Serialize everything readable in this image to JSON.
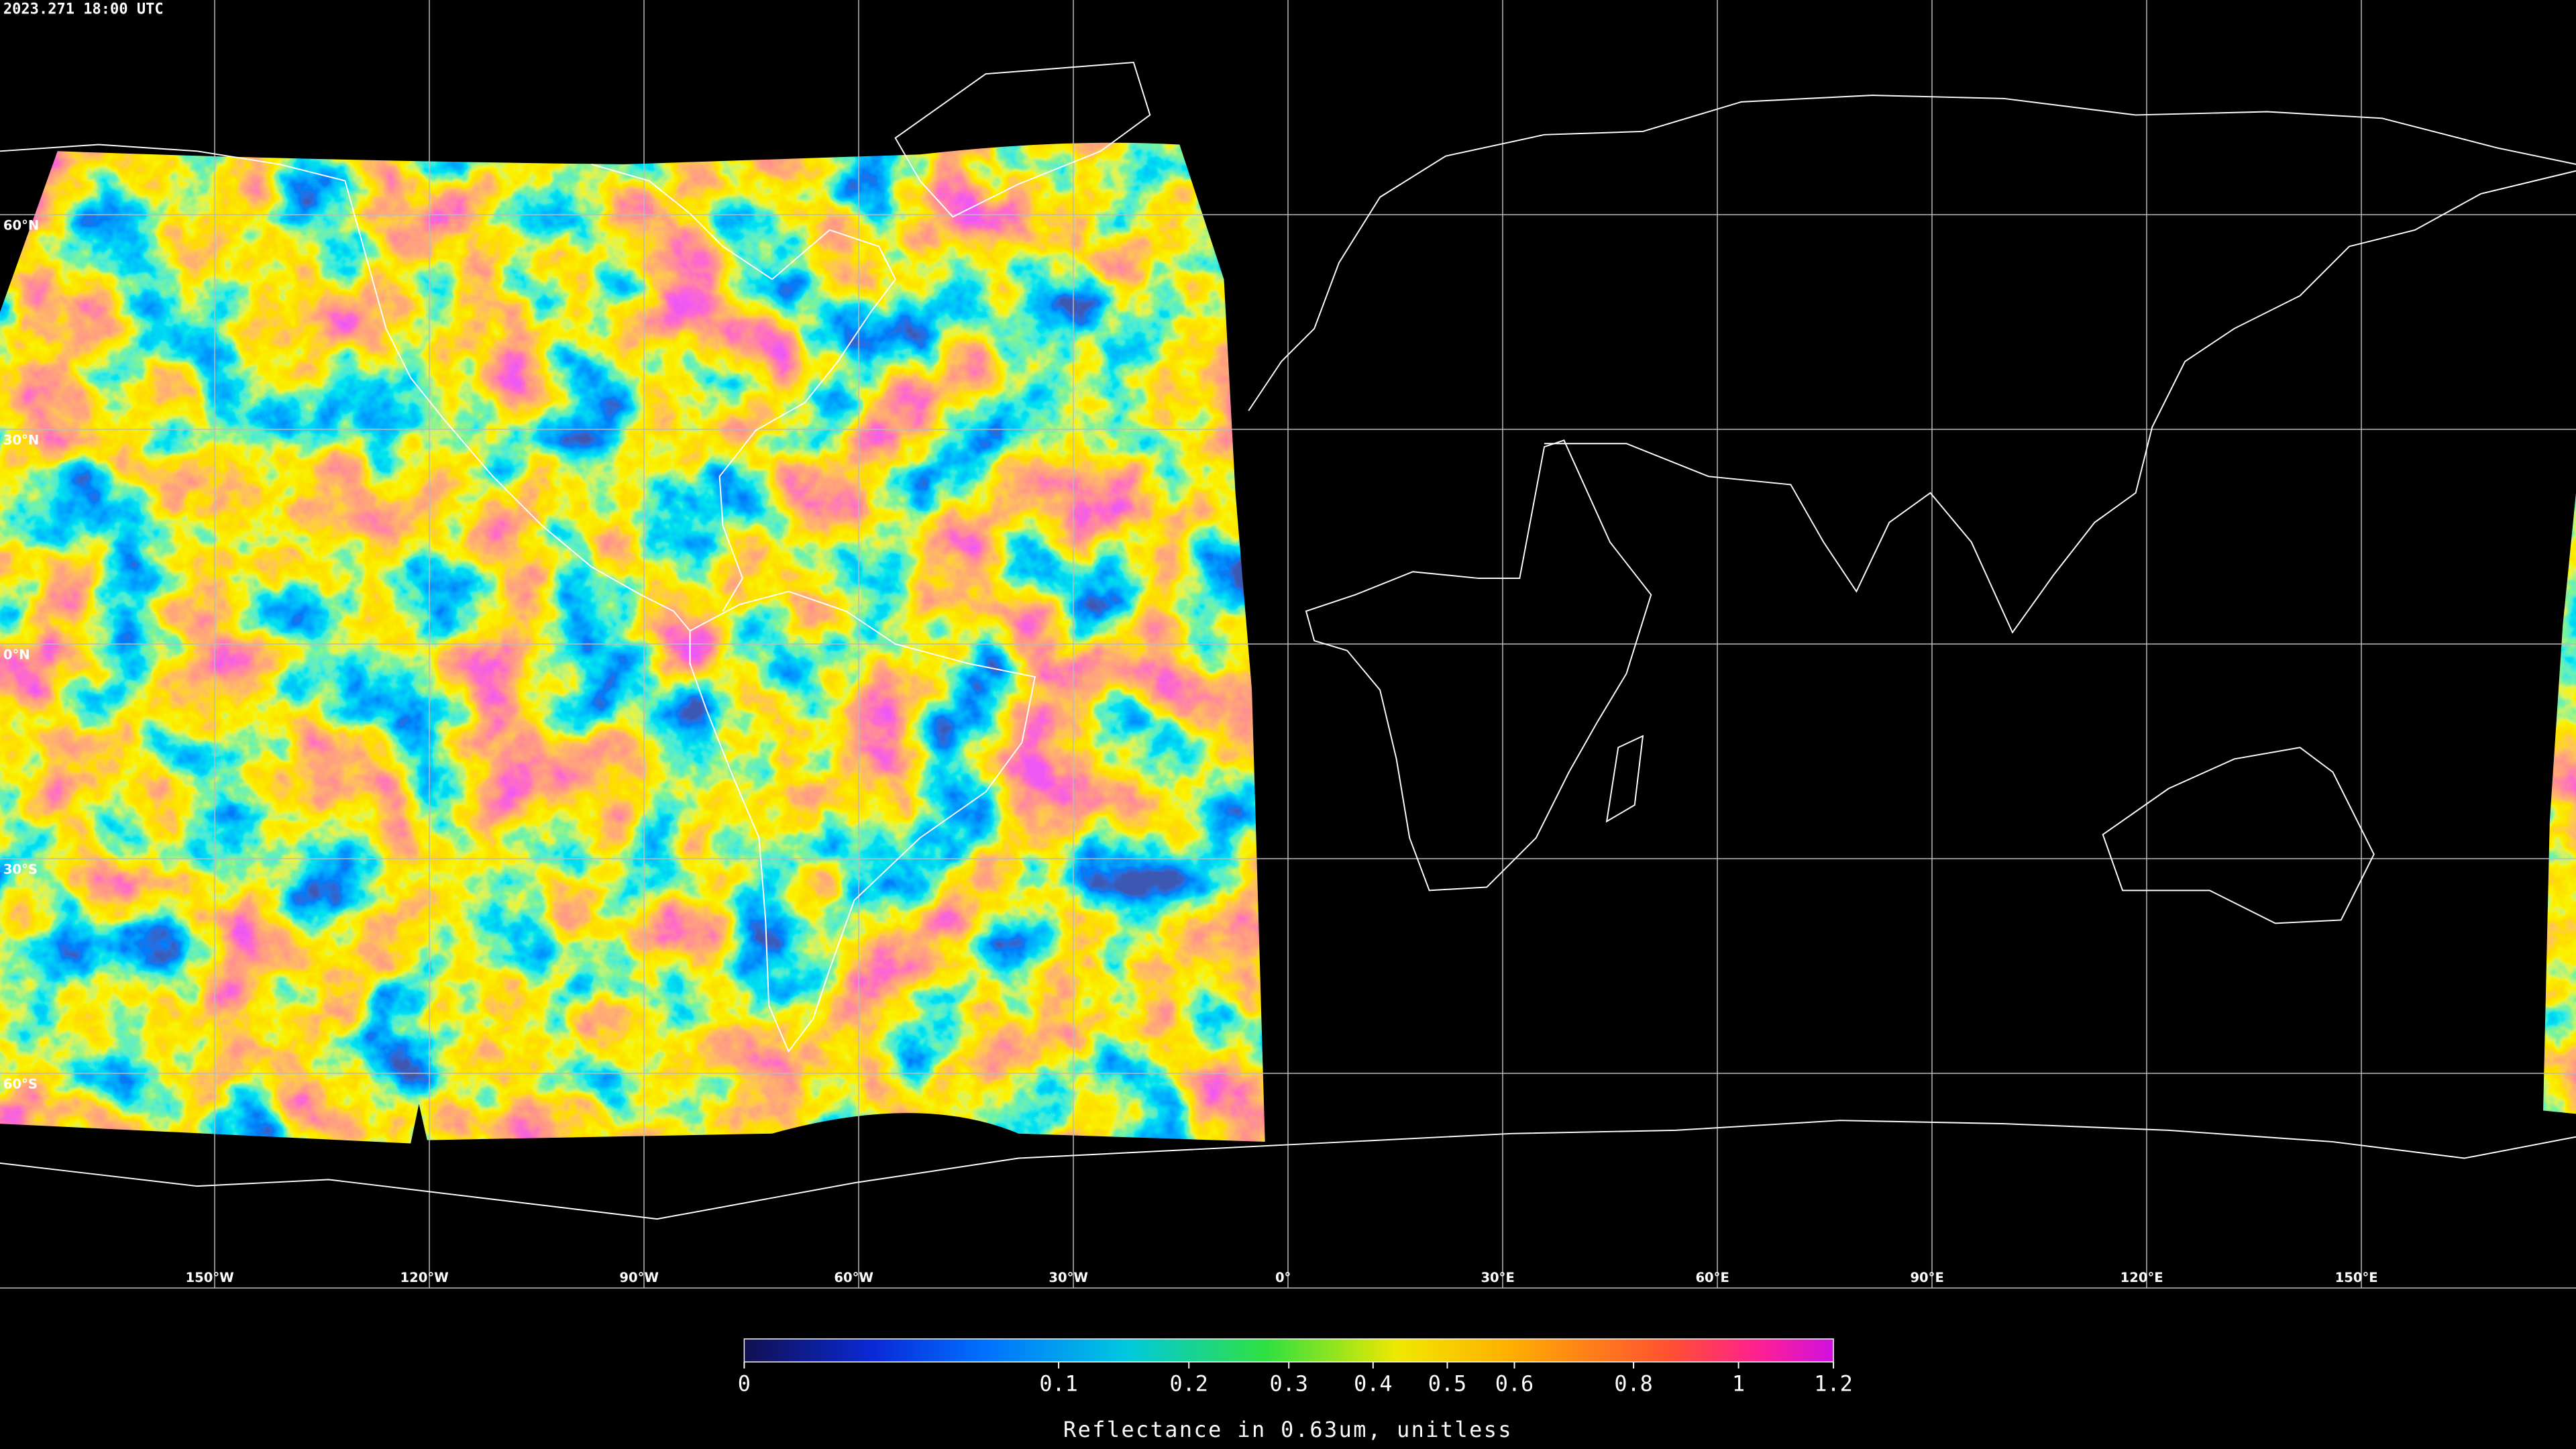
{
  "map": {
    "timestamp": "2023.271 18:00 UTC",
    "lon_lim": [
      -180,
      180
    ],
    "lat_lim": [
      -90,
      90
    ],
    "grid": true,
    "lon_ticks": [
      {
        "value": -150,
        "label": "150°W"
      },
      {
        "value": -120,
        "label": "120°W"
      },
      {
        "value": -90,
        "label": "90°W"
      },
      {
        "value": -60,
        "label": "60°W"
      },
      {
        "value": -30,
        "label": "30°W"
      },
      {
        "value": 0,
        "label": "0°"
      },
      {
        "value": 30,
        "label": "30°E"
      },
      {
        "value": 60,
        "label": "60°E"
      },
      {
        "value": 90,
        "label": "90°E"
      },
      {
        "value": 120,
        "label": "120°E"
      },
      {
        "value": 150,
        "label": "150°E"
      }
    ],
    "lat_ticks": [
      {
        "value": 60,
        "label": "60°N"
      },
      {
        "value": 30,
        "label": "30°N"
      },
      {
        "value": 0,
        "label": "0°N"
      },
      {
        "value": -30,
        "label": "30°S"
      },
      {
        "value": -60,
        "label": "60°S"
      }
    ]
  },
  "colorbar": {
    "title": "Reflectance in 0.63um, unitless",
    "lim": [
      0,
      1.2
    ],
    "scale": "sqrt",
    "ticks": [
      0,
      0.1,
      0.2,
      0.3,
      0.4,
      0.5,
      0.6,
      0.8,
      1,
      1.2
    ]
  }
}
